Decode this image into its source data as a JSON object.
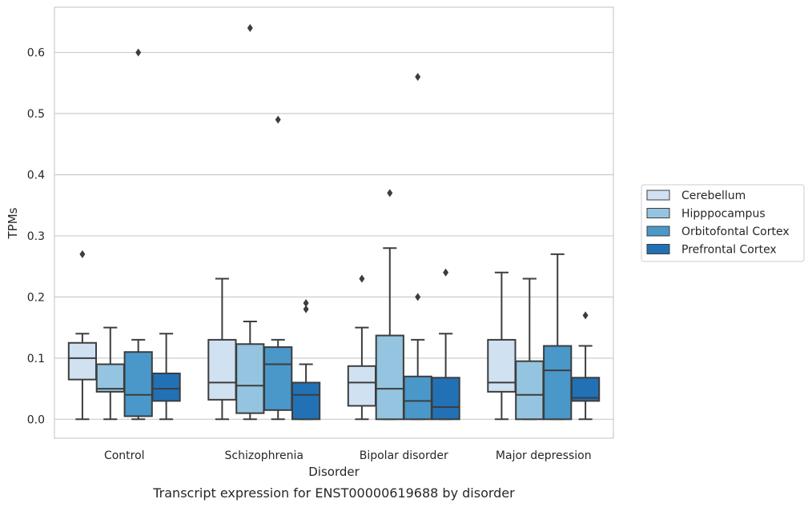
{
  "chart_data": {
    "type": "box",
    "title": "",
    "caption": "Transcript expression for ENST00000619688 by disorder",
    "xlabel": "Disorder",
    "ylabel": "TPMs",
    "ylim": [
      -0.031,
      0.674
    ],
    "yticks": [
      0.0,
      0.1,
      0.2,
      0.3,
      0.4,
      0.5,
      0.6
    ],
    "ytick_labels": [
      "0.0",
      "0.1",
      "0.2",
      "0.3",
      "0.4",
      "0.5",
      "0.6"
    ],
    "grid": "horizontal",
    "legend_position": "right",
    "categories": [
      "Control",
      "Schizophrenia",
      "Bipolar disorder",
      "Major depression"
    ],
    "series": [
      {
        "name": "Cerebellum",
        "color": "#d0e1f2",
        "boxes": [
          {
            "whisker_low": 0.0,
            "q1": 0.065,
            "median": 0.1,
            "q3": 0.125,
            "whisker_high": 0.14,
            "outliers": [
              0.27
            ]
          },
          {
            "whisker_low": 0.0,
            "q1": 0.032,
            "median": 0.06,
            "q3": 0.13,
            "whisker_high": 0.23,
            "outliers": []
          },
          {
            "whisker_low": 0.0,
            "q1": 0.022,
            "median": 0.06,
            "q3": 0.087,
            "whisker_high": 0.15,
            "outliers": [
              0.23
            ]
          },
          {
            "whisker_low": 0.0,
            "q1": 0.045,
            "median": 0.06,
            "q3": 0.13,
            "whisker_high": 0.24,
            "outliers": []
          }
        ]
      },
      {
        "name": "Hipppocampus",
        "color": "#94c4df",
        "boxes": [
          {
            "whisker_low": 0.0,
            "q1": 0.045,
            "median": 0.05,
            "q3": 0.09,
            "whisker_high": 0.15,
            "outliers": []
          },
          {
            "whisker_low": 0.0,
            "q1": 0.01,
            "median": 0.055,
            "q3": 0.123,
            "whisker_high": 0.16,
            "outliers": [
              0.64
            ]
          },
          {
            "whisker_low": 0.0,
            "q1": 0.0,
            "median": 0.05,
            "q3": 0.137,
            "whisker_high": 0.28,
            "outliers": [
              0.37
            ]
          },
          {
            "whisker_low": 0.0,
            "q1": 0.0,
            "median": 0.04,
            "q3": 0.095,
            "whisker_high": 0.23,
            "outliers": []
          }
        ]
      },
      {
        "name": "Orbitofontal Cortex",
        "color": "#4a98c9",
        "boxes": [
          {
            "whisker_low": 0.0,
            "q1": 0.005,
            "median": 0.04,
            "q3": 0.11,
            "whisker_high": 0.13,
            "outliers": [
              0.6
            ]
          },
          {
            "whisker_low": 0.0,
            "q1": 0.015,
            "median": 0.09,
            "q3": 0.118,
            "whisker_high": 0.13,
            "outliers": [
              0.49
            ]
          },
          {
            "whisker_low": 0.0,
            "q1": 0.0,
            "median": 0.03,
            "q3": 0.07,
            "whisker_high": 0.13,
            "outliers": [
              0.2,
              0.56
            ]
          },
          {
            "whisker_low": 0.0,
            "q1": 0.0,
            "median": 0.08,
            "q3": 0.12,
            "whisker_high": 0.27,
            "outliers": []
          }
        ]
      },
      {
        "name": "Prefrontal Cortex",
        "color": "#2271b5",
        "boxes": [
          {
            "whisker_low": 0.0,
            "q1": 0.03,
            "median": 0.05,
            "q3": 0.075,
            "whisker_high": 0.14,
            "outliers": []
          },
          {
            "whisker_low": 0.0,
            "q1": 0.0,
            "median": 0.04,
            "q3": 0.06,
            "whisker_high": 0.09,
            "outliers": [
              0.18,
              0.19
            ]
          },
          {
            "whisker_low": 0.0,
            "q1": 0.0,
            "median": 0.02,
            "q3": 0.068,
            "whisker_high": 0.14,
            "outliers": [
              0.24
            ]
          },
          {
            "whisker_low": 0.0,
            "q1": 0.03,
            "median": 0.035,
            "q3": 0.068,
            "whisker_high": 0.12,
            "outliers": [
              0.17
            ]
          }
        ]
      }
    ]
  }
}
